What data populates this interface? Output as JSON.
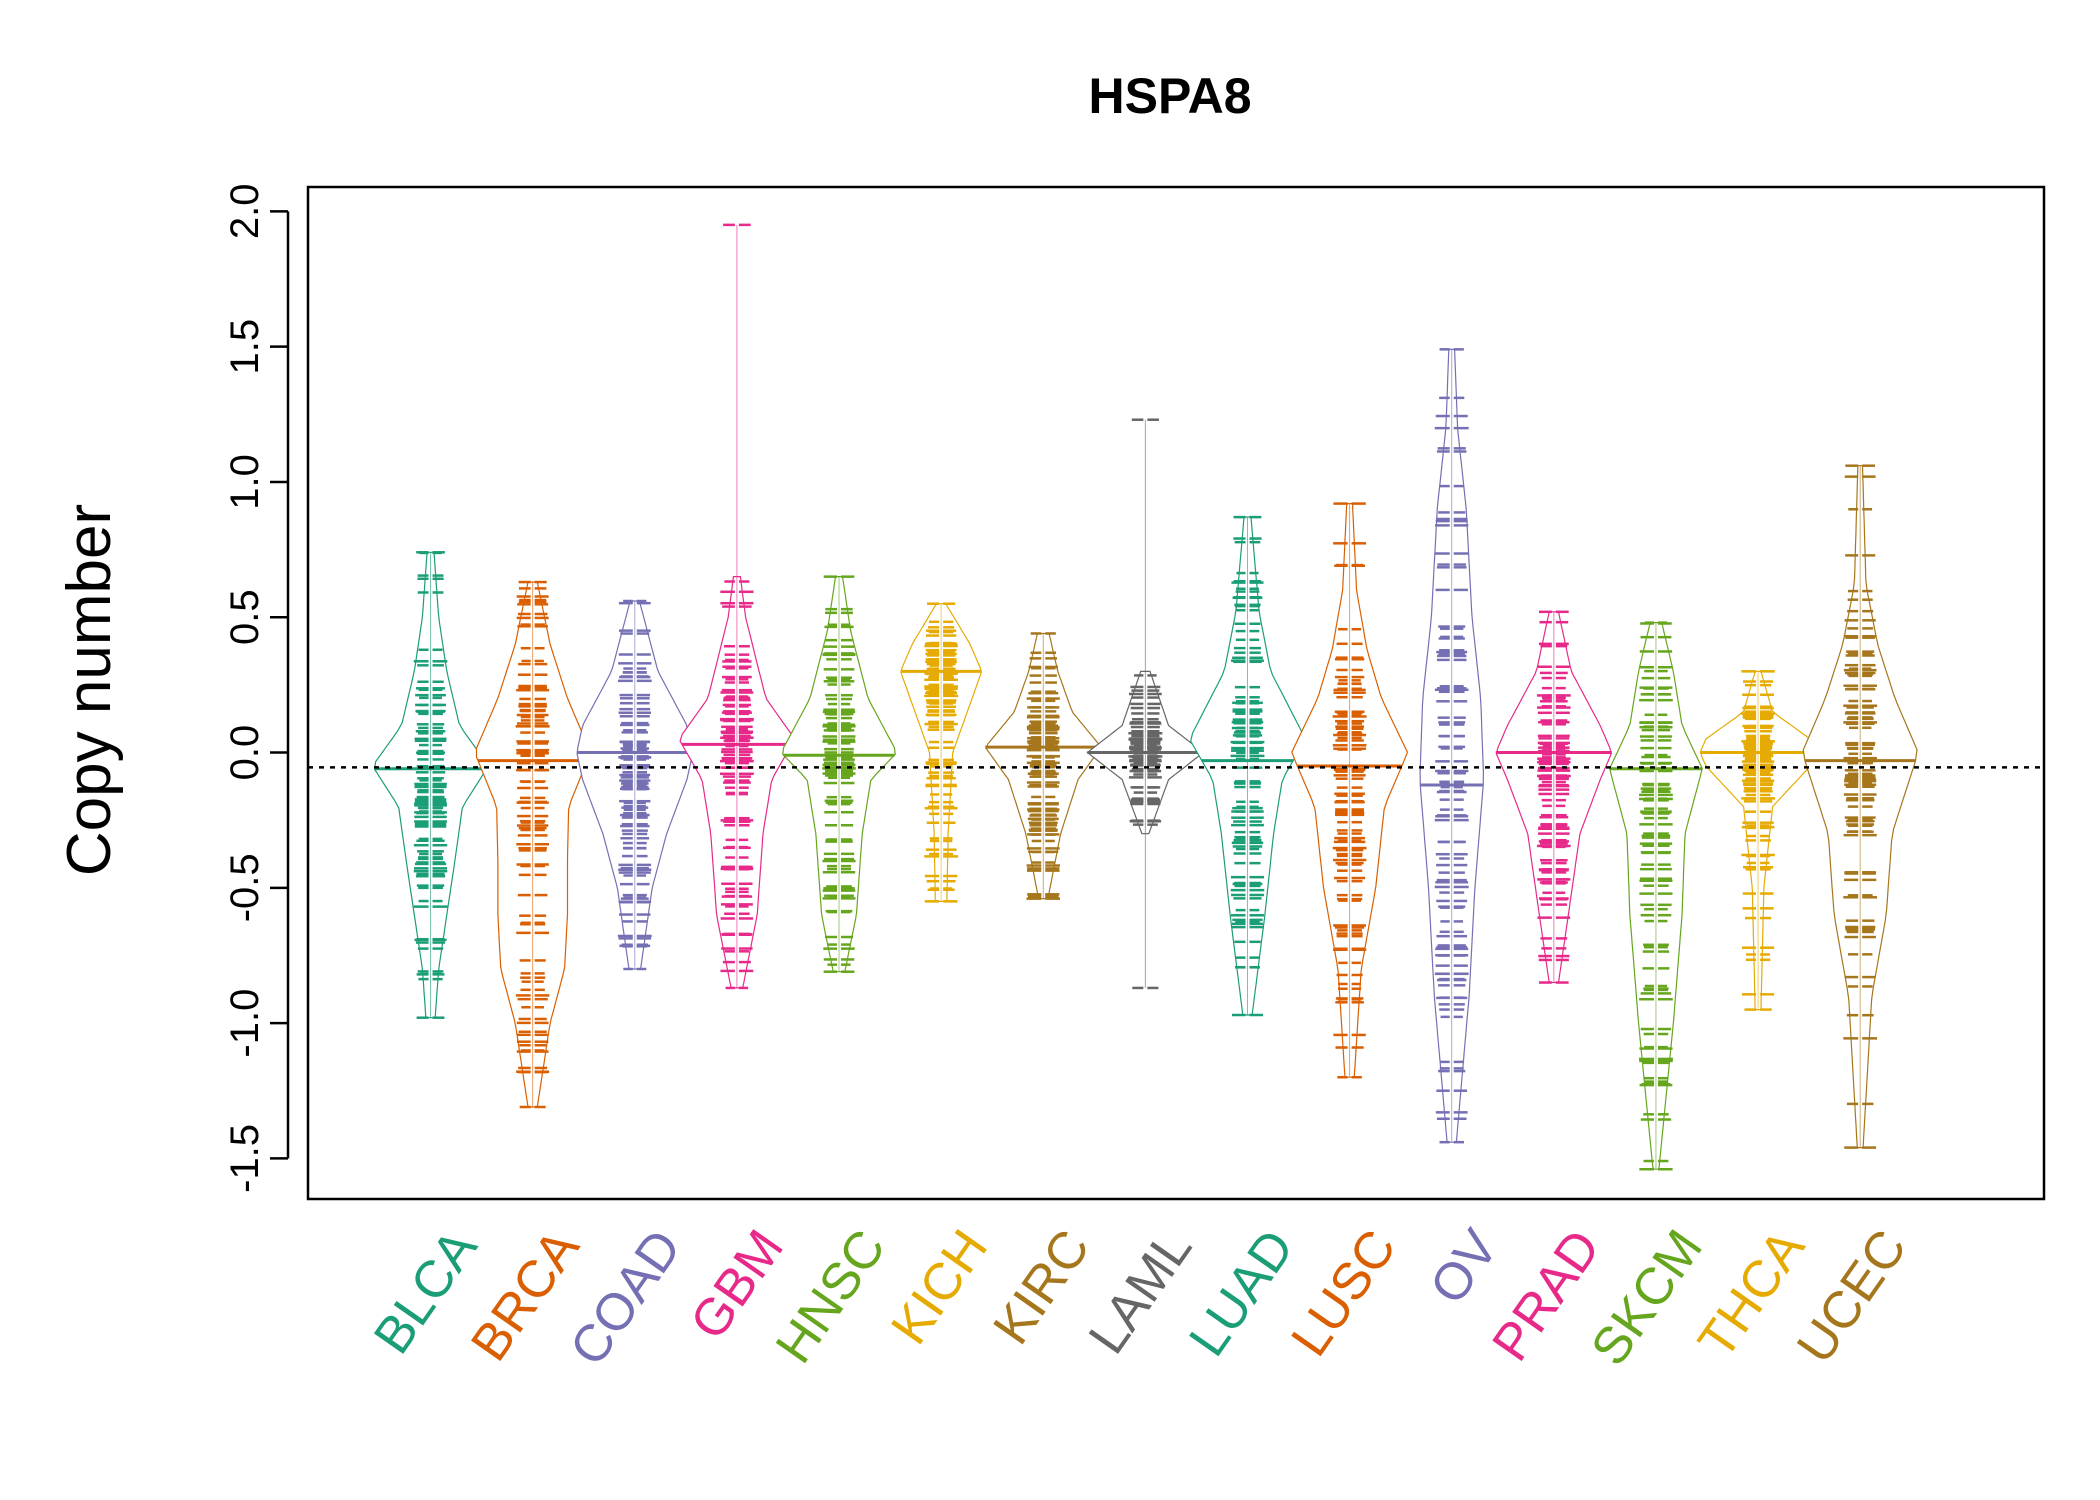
{
  "chart_data": {
    "type": "beanplot",
    "title": "HSPA8",
    "xlabel": "",
    "ylabel": "Copy number",
    "ylim": [
      -1.65,
      2.09
    ],
    "yticks": [
      -1.5,
      -1.0,
      -0.5,
      0.0,
      0.5,
      1.0,
      1.5,
      2.0
    ],
    "ytick_labels": [
      "-1.5",
      "-1.0",
      "-0.5",
      "0.0",
      "0.5",
      "1.0",
      "1.5",
      "2.0"
    ],
    "reference_line": -0.055,
    "grid": false,
    "categories": [
      "BLCA",
      "BRCA",
      "COAD",
      "GBM",
      "HNSC",
      "KICH",
      "KIRC",
      "LAML",
      "LUAD",
      "LUSC",
      "OV",
      "PRAD",
      "SKCM",
      "THCA",
      "UCEC"
    ],
    "colors": [
      "#1b9e77",
      "#d95f02",
      "#7570b3",
      "#e7298a",
      "#66a61e",
      "#e6ab02",
      "#a6761d",
      "#666666",
      "#1b9e77",
      "#d95f02",
      "#7570b3",
      "#e7298a",
      "#66a61e",
      "#e6ab02",
      "#a6761d"
    ],
    "series": [
      {
        "name": "BLCA",
        "min": -0.98,
        "max": 0.74,
        "median": -0.06,
        "profile": [
          [
            -0.98,
            0.08
          ],
          [
            -0.8,
            0.14
          ],
          [
            -0.6,
            0.28
          ],
          [
            -0.4,
            0.42
          ],
          [
            -0.2,
            0.55
          ],
          [
            -0.05,
            1.0
          ],
          [
            0.1,
            0.5
          ],
          [
            0.3,
            0.28
          ],
          [
            0.5,
            0.14
          ],
          [
            0.74,
            0.06
          ]
        ]
      },
      {
        "name": "BRCA",
        "min": -1.31,
        "max": 0.63,
        "median": -0.03,
        "profile": [
          [
            -1.31,
            0.08
          ],
          [
            -1.0,
            0.3
          ],
          [
            -0.8,
            0.55
          ],
          [
            -0.6,
            0.6
          ],
          [
            -0.4,
            0.6
          ],
          [
            -0.2,
            0.62
          ],
          [
            0.0,
            1.0
          ],
          [
            0.2,
            0.6
          ],
          [
            0.4,
            0.3
          ],
          [
            0.63,
            0.08
          ]
        ]
      },
      {
        "name": "COAD",
        "min": -0.8,
        "max": 0.56,
        "median": 0.0,
        "profile": [
          [
            -0.8,
            0.1
          ],
          [
            -0.5,
            0.3
          ],
          [
            -0.3,
            0.55
          ],
          [
            -0.1,
            0.9
          ],
          [
            0.0,
            1.0
          ],
          [
            0.1,
            0.9
          ],
          [
            0.3,
            0.4
          ],
          [
            0.56,
            0.08
          ]
        ]
      },
      {
        "name": "GBM",
        "min": -0.87,
        "max": 1.95,
        "median": 0.03,
        "profile": [
          [
            -0.87,
            0.1
          ],
          [
            -0.6,
            0.35
          ],
          [
            -0.3,
            0.45
          ],
          [
            -0.1,
            0.6
          ],
          [
            0.05,
            1.0
          ],
          [
            0.2,
            0.5
          ],
          [
            0.5,
            0.15
          ],
          [
            0.65,
            0.06
          ]
        ]
      },
      {
        "name": "HNSC",
        "min": -0.81,
        "max": 0.65,
        "median": -0.01,
        "profile": [
          [
            -0.81,
            0.1
          ],
          [
            -0.6,
            0.3
          ],
          [
            -0.3,
            0.4
          ],
          [
            -0.1,
            0.55
          ],
          [
            0.0,
            1.0
          ],
          [
            0.2,
            0.5
          ],
          [
            0.45,
            0.2
          ],
          [
            0.65,
            0.06
          ]
        ]
      },
      {
        "name": "KICH",
        "min": -0.55,
        "max": 0.55,
        "median": 0.3,
        "profile": [
          [
            -0.55,
            0.1
          ],
          [
            -0.3,
            0.12
          ],
          [
            0.0,
            0.2
          ],
          [
            0.15,
            0.45
          ],
          [
            0.3,
            0.7
          ],
          [
            0.4,
            0.5
          ],
          [
            0.55,
            0.08
          ]
        ]
      },
      {
        "name": "KIRC",
        "min": -0.54,
        "max": 0.44,
        "median": 0.02,
        "profile": [
          [
            -0.54,
            0.08
          ],
          [
            -0.3,
            0.3
          ],
          [
            -0.1,
            0.6
          ],
          [
            0.02,
            1.0
          ],
          [
            0.15,
            0.5
          ],
          [
            0.3,
            0.25
          ],
          [
            0.44,
            0.1
          ]
        ]
      },
      {
        "name": "LAML",
        "min": -0.87,
        "max": 1.23,
        "median": 0.0,
        "profile": [
          [
            -0.3,
            0.06
          ],
          [
            -0.1,
            0.4
          ],
          [
            0.0,
            1.0
          ],
          [
            0.1,
            0.4
          ],
          [
            0.3,
            0.08
          ]
        ]
      },
      {
        "name": "LUAD",
        "min": -0.97,
        "max": 0.87,
        "median": -0.03,
        "profile": [
          [
            -0.97,
            0.08
          ],
          [
            -0.6,
            0.3
          ],
          [
            -0.3,
            0.45
          ],
          [
            -0.1,
            0.6
          ],
          [
            0.05,
            1.0
          ],
          [
            0.3,
            0.4
          ],
          [
            0.52,
            0.2
          ],
          [
            0.87,
            0.06
          ]
        ]
      },
      {
        "name": "LUSC",
        "min": -1.2,
        "max": 0.92,
        "median": -0.05,
        "profile": [
          [
            -1.2,
            0.08
          ],
          [
            -0.8,
            0.2
          ],
          [
            -0.5,
            0.45
          ],
          [
            -0.2,
            0.6
          ],
          [
            0.0,
            1.0
          ],
          [
            0.2,
            0.55
          ],
          [
            0.38,
            0.3
          ],
          [
            0.6,
            0.12
          ],
          [
            0.92,
            0.05
          ]
        ]
      },
      {
        "name": "OV",
        "min": -1.44,
        "max": 1.49,
        "median": -0.12,
        "profile": [
          [
            -1.44,
            0.08
          ],
          [
            -0.9,
            0.3
          ],
          [
            -0.5,
            0.4
          ],
          [
            -0.1,
            0.55
          ],
          [
            0.2,
            0.5
          ],
          [
            0.5,
            0.35
          ],
          [
            0.9,
            0.25
          ],
          [
            1.2,
            0.1
          ],
          [
            1.49,
            0.05
          ]
        ]
      },
      {
        "name": "PRAD",
        "min": -0.85,
        "max": 0.52,
        "median": 0.0,
        "profile": [
          [
            -0.85,
            0.08
          ],
          [
            -0.6,
            0.25
          ],
          [
            -0.3,
            0.45
          ],
          [
            -0.1,
            0.8
          ],
          [
            0.0,
            1.0
          ],
          [
            0.1,
            0.8
          ],
          [
            0.3,
            0.3
          ],
          [
            0.52,
            0.08
          ]
        ]
      },
      {
        "name": "SKCM",
        "min": -1.54,
        "max": 0.48,
        "median": -0.06,
        "profile": [
          [
            -1.54,
            0.05
          ],
          [
            -1.0,
            0.3
          ],
          [
            -0.6,
            0.45
          ],
          [
            -0.3,
            0.5
          ],
          [
            -0.06,
            0.8
          ],
          [
            0.1,
            0.45
          ],
          [
            0.3,
            0.3
          ],
          [
            0.48,
            0.1
          ]
        ]
      },
      {
        "name": "THCA",
        "min": -0.95,
        "max": 0.3,
        "median": 0.0,
        "profile": [
          [
            -0.95,
            0.05
          ],
          [
            -0.5,
            0.1
          ],
          [
            -0.2,
            0.25
          ],
          [
            -0.05,
            0.9
          ],
          [
            0.0,
            1.0
          ],
          [
            0.05,
            0.9
          ],
          [
            0.15,
            0.25
          ],
          [
            0.3,
            0.05
          ]
        ]
      },
      {
        "name": "UCEC",
        "min": -1.46,
        "max": 1.06,
        "median": -0.03,
        "profile": [
          [
            -1.46,
            0.05
          ],
          [
            -0.9,
            0.2
          ],
          [
            -0.6,
            0.45
          ],
          [
            -0.3,
            0.55
          ],
          [
            0.0,
            1.0
          ],
          [
            0.2,
            0.6
          ],
          [
            0.4,
            0.3
          ],
          [
            0.62,
            0.1
          ],
          [
            1.06,
            0.04
          ]
        ]
      }
    ]
  }
}
